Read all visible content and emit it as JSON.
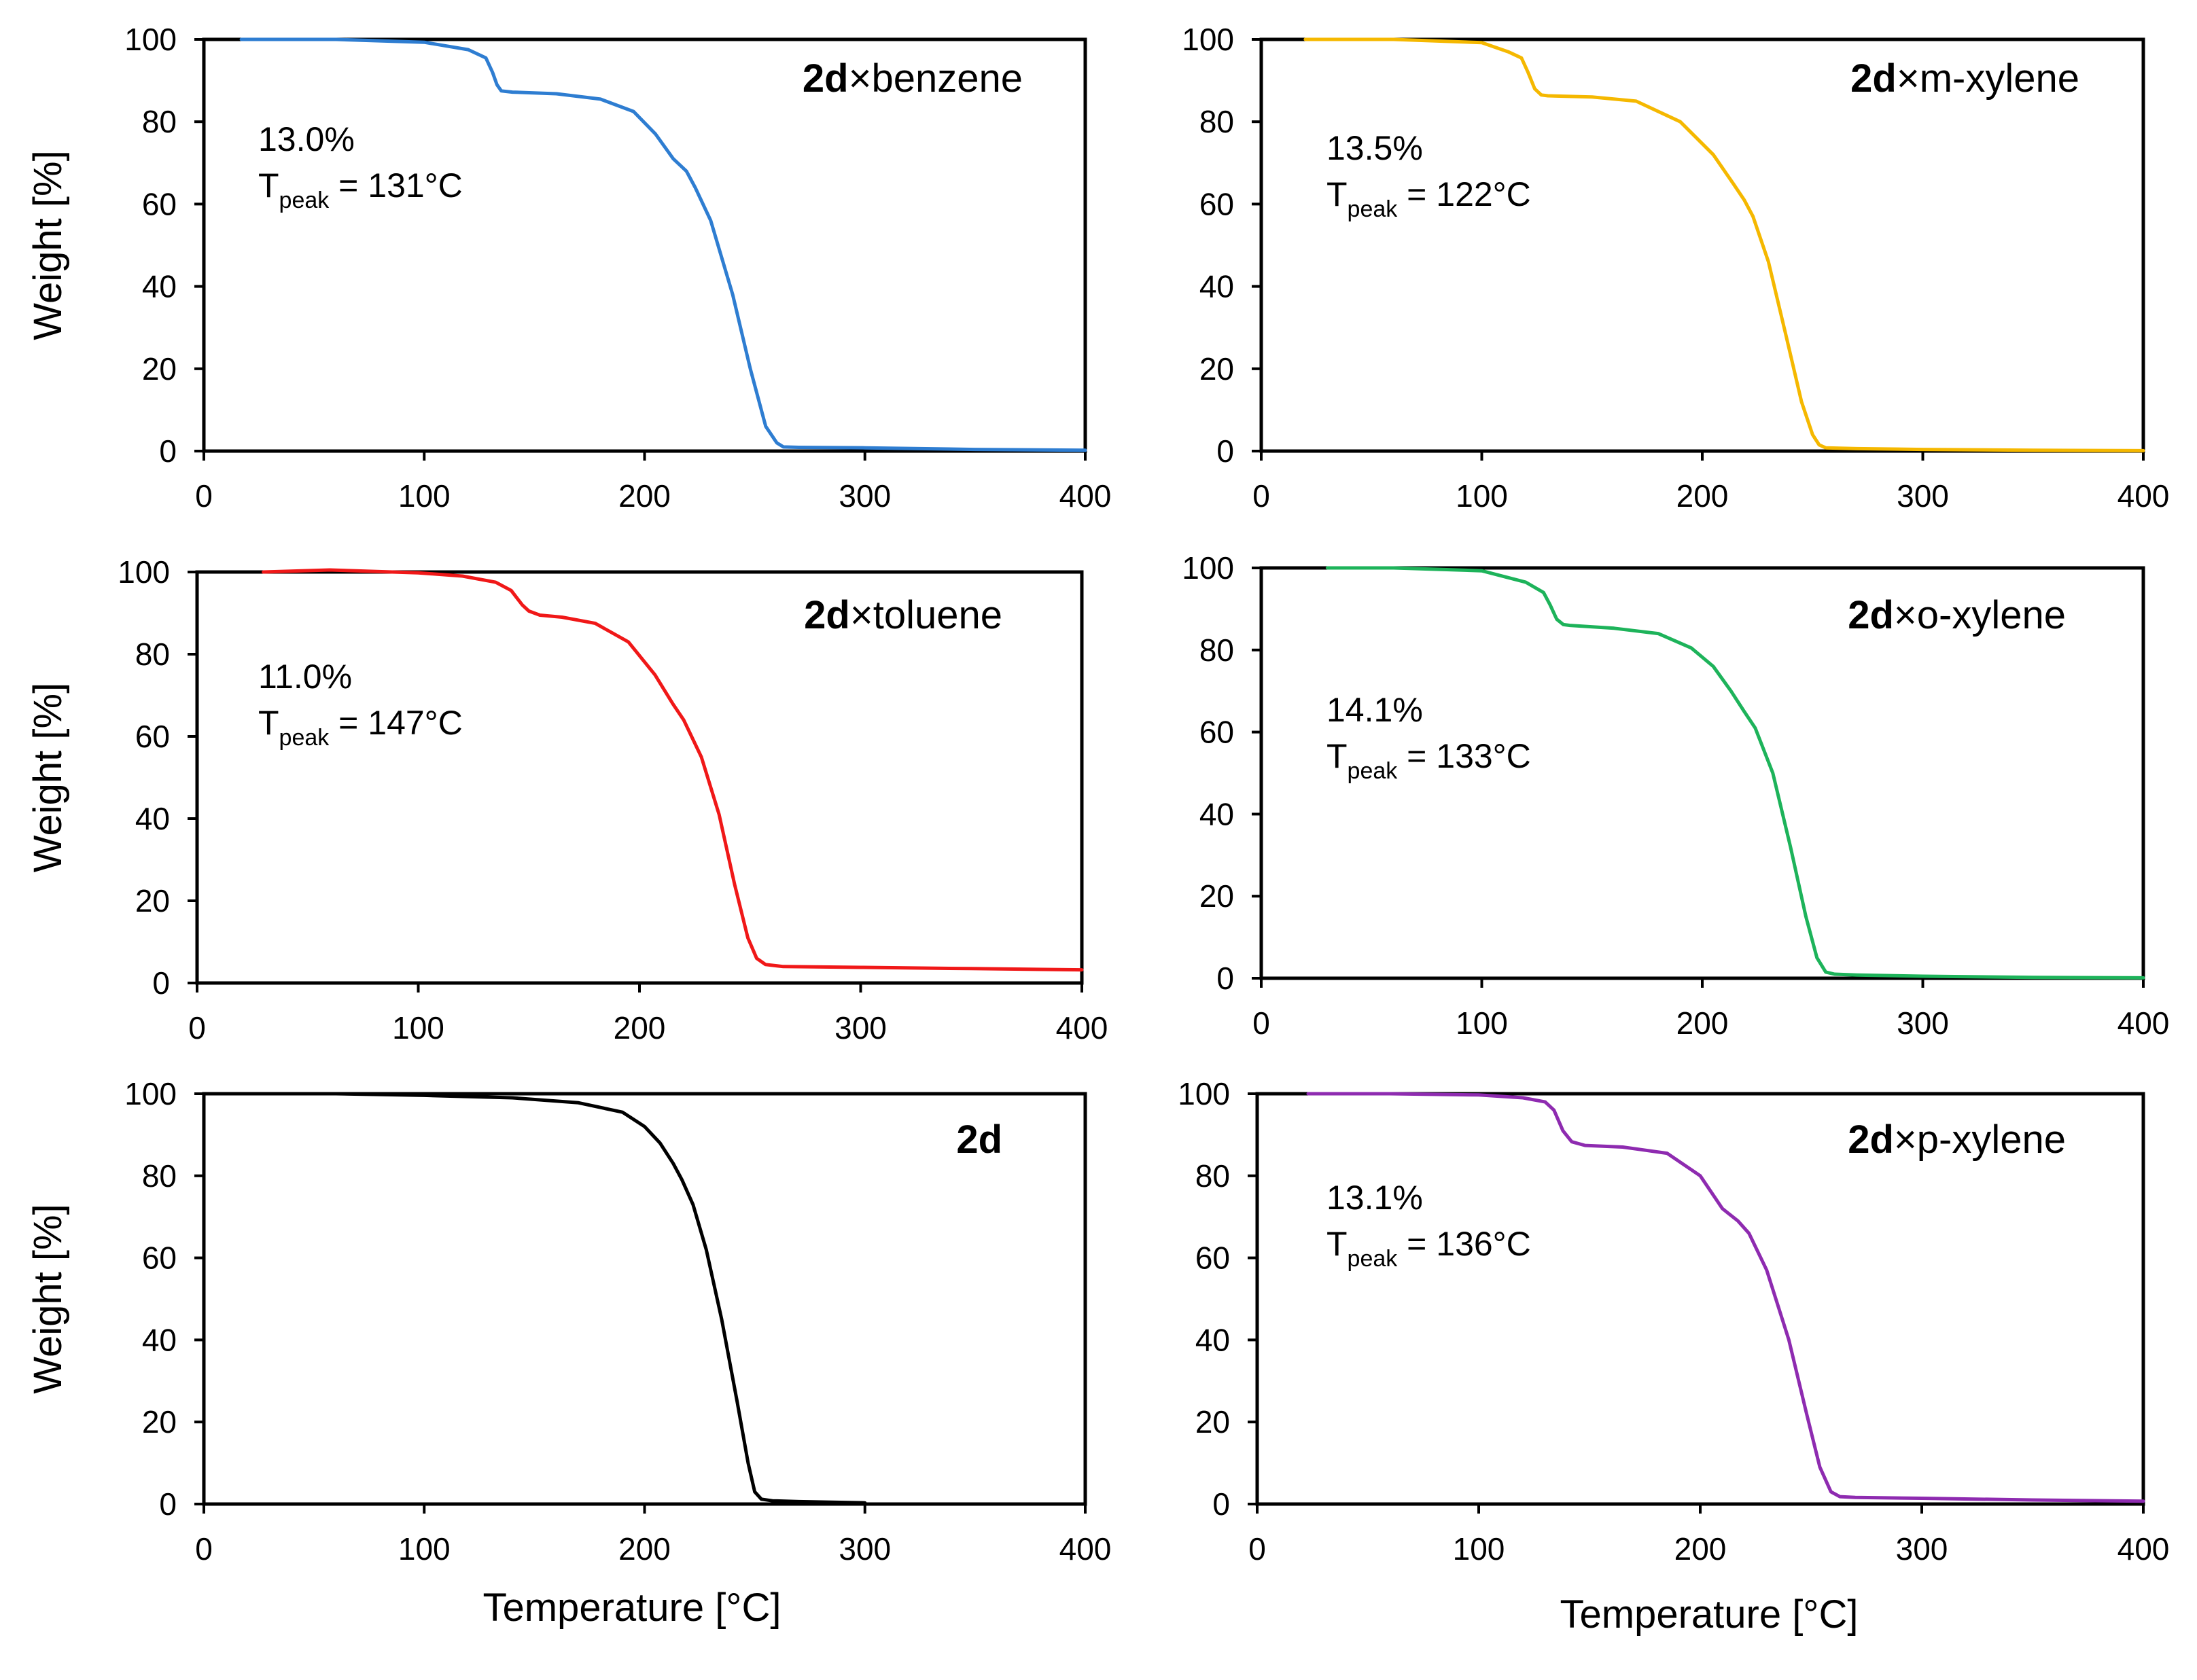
{
  "chart_data": [
    {
      "type": "line",
      "id": "benzene",
      "title_bold": "2d",
      "title_rest": "×benzene",
      "xlabel": "",
      "ylabel": "Weight [%]",
      "xlim": [
        0,
        400
      ],
      "ylim": [
        0,
        100
      ],
      "xticks": [
        0,
        100,
        200,
        300,
        400
      ],
      "yticks": [
        0,
        20,
        40,
        60,
        80,
        100
      ],
      "color": "#2e7dd1",
      "annotation": {
        "mass_loss": "13.0%",
        "t_symbol": "T",
        "t_subscript": "peak",
        "t_value": " = 131°C"
      },
      "series": [
        {
          "name": "2d×benzene",
          "x": [
            17,
            60,
            100,
            120,
            128,
            131,
            133,
            135,
            140,
            160,
            180,
            195,
            205,
            213,
            219,
            223,
            230,
            240,
            248,
            255,
            260,
            263,
            270,
            300,
            350,
            400
          ],
          "y": [
            100,
            100,
            99.3,
            97.5,
            95.5,
            92,
            89,
            87.5,
            87.2,
            86.8,
            85.5,
            82.5,
            77,
            71,
            68,
            64,
            56,
            38,
            20,
            6,
            2,
            1,
            0.9,
            0.8,
            0.4,
            0.2
          ]
        }
      ]
    },
    {
      "type": "line",
      "id": "m-xylene",
      "title_bold": "2d",
      "title_rest": "×m-xylene",
      "xlabel": "",
      "ylabel": "",
      "xlim": [
        0,
        400
      ],
      "ylim": [
        0,
        100
      ],
      "xticks": [
        0,
        100,
        200,
        300,
        400
      ],
      "yticks": [
        0,
        20,
        40,
        60,
        80,
        100
      ],
      "color": "#f5b800",
      "annotation": {
        "mass_loss": "13.5%",
        "t_symbol": "T",
        "t_subscript": "peak",
        "t_value": " = 122°C"
      },
      "series": [
        {
          "name": "2d×m-xylene",
          "x": [
            20,
            60,
            100,
            112,
            118,
            121,
            124,
            127,
            130,
            150,
            170,
            190,
            205,
            214,
            219,
            223,
            230,
            238,
            245,
            250,
            253,
            256,
            270,
            300,
            350,
            400
          ],
          "y": [
            100,
            100,
            99.2,
            97,
            95.5,
            92,
            88,
            86.5,
            86.3,
            86,
            85,
            80,
            72,
            65,
            61,
            57,
            46,
            28,
            12,
            4,
            1.5,
            0.8,
            0.6,
            0.4,
            0.2,
            0.1
          ]
        }
      ]
    },
    {
      "type": "line",
      "id": "toluene",
      "title_bold": "2d",
      "title_rest": "×toluene",
      "xlabel": "",
      "ylabel": "Weight [%]",
      "xlim": [
        0,
        400
      ],
      "ylim": [
        0,
        100
      ],
      "xticks": [
        0,
        100,
        200,
        300,
        400
      ],
      "yticks": [
        0,
        20,
        40,
        60,
        80,
        100
      ],
      "color": "#f01818",
      "annotation": {
        "mass_loss": "11.0%",
        "t_symbol": "T",
        "t_subscript": "peak",
        "t_value": " = 147°C"
      },
      "series": [
        {
          "name": "2d×toluene",
          "x": [
            30,
            60,
            100,
            120,
            135,
            142,
            147,
            150,
            155,
            165,
            180,
            195,
            207,
            215,
            220,
            228,
            236,
            243,
            249,
            253,
            257,
            265,
            300,
            350,
            400
          ],
          "y": [
            100,
            100.5,
            99.8,
            99,
            97.5,
            95.5,
            92,
            90.5,
            89.5,
            89,
            87.5,
            83,
            75,
            68,
            64,
            55,
            41,
            24,
            11,
            6,
            4.5,
            4,
            3.8,
            3.5,
            3.2
          ]
        }
      ]
    },
    {
      "type": "line",
      "id": "o-xylene",
      "title_bold": "2d",
      "title_rest": "×o-xylene",
      "xlabel": "",
      "ylabel": "",
      "xlim": [
        0,
        400
      ],
      "ylim": [
        0,
        100
      ],
      "xticks": [
        0,
        100,
        200,
        300,
        400
      ],
      "yticks": [
        0,
        20,
        40,
        60,
        80,
        100
      ],
      "color": "#1db35a",
      "annotation": {
        "mass_loss": "14.1%",
        "t_symbol": "T",
        "t_subscript": "peak",
        "t_value": " = 133°C"
      },
      "series": [
        {
          "name": "2d×o-xylene",
          "x": [
            30,
            60,
            100,
            120,
            128,
            131,
            134,
            137,
            140,
            160,
            180,
            195,
            205,
            213,
            219,
            224,
            232,
            240,
            247,
            252,
            256,
            260,
            270,
            300,
            350,
            400
          ],
          "y": [
            100,
            100,
            99.3,
            96.5,
            94,
            91,
            87.5,
            86.2,
            86,
            85.3,
            84,
            80.5,
            76,
            70,
            65,
            61,
            50,
            32,
            15,
            5,
            1.5,
            1,
            0.8,
            0.5,
            0.2,
            0.1
          ]
        }
      ]
    },
    {
      "type": "line",
      "id": "2d",
      "title_bold": "2d",
      "title_rest": "",
      "xlabel": "Temperature [°C]",
      "ylabel": "Weight [%]",
      "xlim": [
        0,
        400
      ],
      "ylim": [
        0,
        100
      ],
      "xticks": [
        0,
        100,
        200,
        300,
        400
      ],
      "yticks": [
        0,
        20,
        40,
        60,
        80,
        100
      ],
      "color": "#000000",
      "annotation": null,
      "series": [
        {
          "name": "2d",
          "x": [
            25,
            60,
            100,
            140,
            170,
            190,
            200,
            207,
            213,
            217,
            222,
            228,
            235,
            242,
            247,
            250,
            253,
            258,
            270,
            300
          ],
          "y": [
            100,
            100,
            99.6,
            99,
            97.8,
            95.5,
            92,
            88,
            83,
            79,
            73,
            62,
            45,
            25,
            10,
            3,
            1.2,
            0.8,
            0.6,
            0.3
          ]
        }
      ]
    },
    {
      "type": "line",
      "id": "p-xylene",
      "title_bold": "2d",
      "title_rest": "×p-xylene",
      "xlabel": "Temperature [°C]",
      "ylabel": "",
      "xlim": [
        0,
        400
      ],
      "ylim": [
        0,
        100
      ],
      "xticks": [
        0,
        100,
        200,
        300,
        400
      ],
      "yticks": [
        0,
        20,
        40,
        60,
        80,
        100
      ],
      "color": "#8e2bb0",
      "annotation": {
        "mass_loss": "13.1%",
        "t_symbol": "T",
        "t_subscript": "peak",
        "t_value": " = 136°C"
      },
      "series": [
        {
          "name": "2d×p-xylene",
          "x": [
            23,
            60,
            100,
            120,
            130,
            134,
            138,
            142,
            148,
            165,
            185,
            200,
            210,
            217,
            222,
            230,
            240,
            248,
            254,
            259,
            263,
            270,
            300,
            350,
            400
          ],
          "y": [
            100,
            100,
            99.7,
            99,
            98,
            96,
            91,
            88.3,
            87.4,
            87,
            85.5,
            80,
            72,
            69,
            66,
            57,
            40,
            22,
            9,
            3,
            1.8,
            1.6,
            1.4,
            1,
            0.7
          ]
        }
      ]
    }
  ]
}
